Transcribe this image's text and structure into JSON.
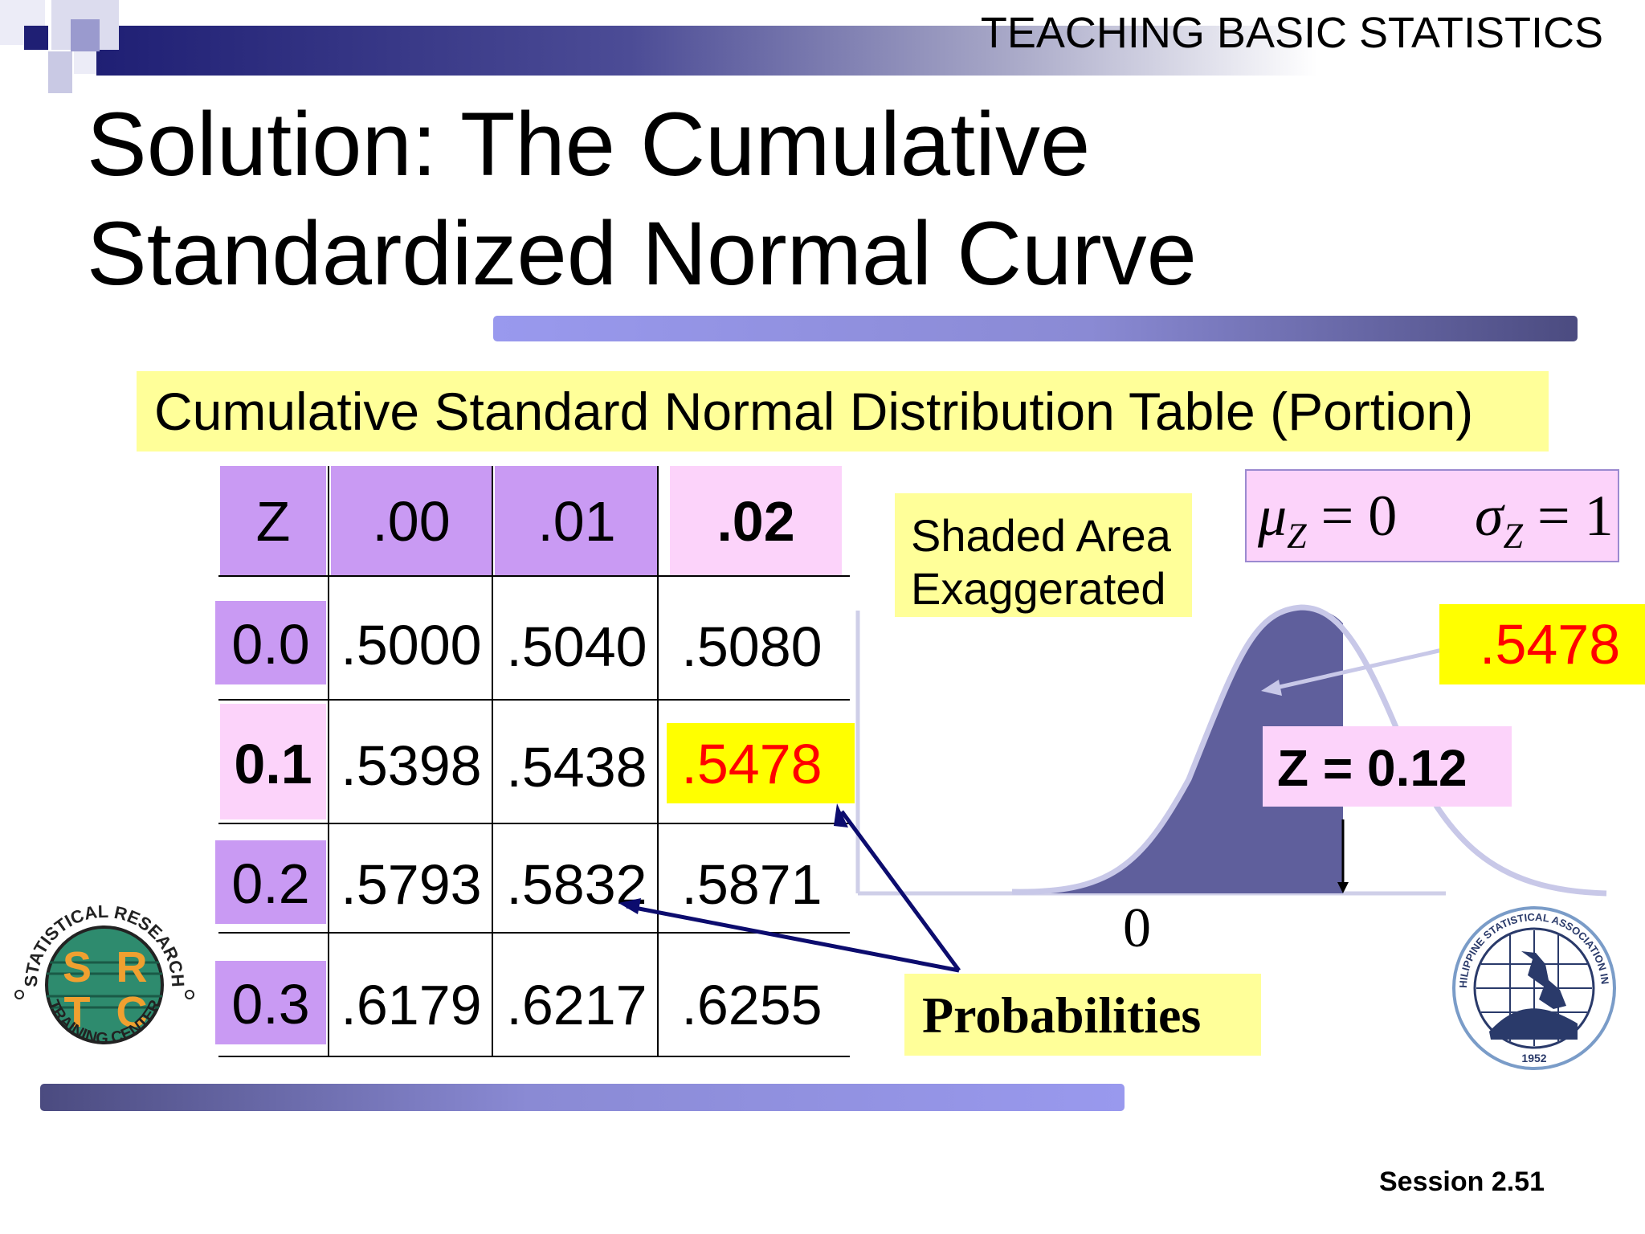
{
  "header": {
    "course_title": "TEACHING BASIC STATISTICS"
  },
  "slide": {
    "title_line1": "Solution: The Cumulative",
    "title_line2": "Standardized Normal Curve"
  },
  "table": {
    "caption": "Cumulative Standard Normal Distribution Table (Portion)",
    "columns": [
      "Z",
      ".00",
      ".01",
      ".02"
    ],
    "rows": [
      {
        "z": "0.0",
        "values": [
          ".5000",
          ".5040",
          ".5080"
        ]
      },
      {
        "z": "0.1",
        "values": [
          ".5398",
          ".5438",
          ".5478"
        ]
      },
      {
        "z": "0.2",
        "values": [
          ".5793",
          ".5832",
          ".5871"
        ]
      },
      {
        "z": "0.3",
        "values": [
          ".6179",
          ".6217",
          ".6255"
        ]
      }
    ],
    "highlighted": {
      "row": "0.1",
      "column": ".02",
      "value": ".5478"
    }
  },
  "annotations": {
    "shaded_area_line1": "Shaded Area",
    "shaded_area_line2": "Exaggerated",
    "mu_symbol": "μ",
    "sigma_symbol": "σ",
    "subscript": "Z",
    "mu_value": "= 0",
    "sigma_value": "= 1",
    "result_value": ".5478",
    "z_label": "Z = 0.12",
    "zero_label": "0",
    "probabilities": "Probabilities"
  },
  "footer": {
    "session": "Session 2.51"
  },
  "colors": {
    "header_dark": "#1f1f74",
    "header_purple": "#c99af3",
    "highlight_pink": "#fcd3fa",
    "highlight_yellow": "#ffff99",
    "cell_yellow": "#ffff00",
    "highlight_red": "#ff0000",
    "curve_fill": "#5f5f9c",
    "curve_line": "#c8c8e8",
    "arrow_navy": "#0c0c6e"
  },
  "logos": {
    "left": {
      "outer_text": "STATISTICAL RESEARCH",
      "bottom_text": "TRAINING CENTER",
      "letters": [
        "S",
        "R",
        "T",
        "C"
      ]
    },
    "right": {
      "outer_text": "PHILIPPINE STATISTICAL ASSOCIATION INC.",
      "year": "1952"
    }
  }
}
